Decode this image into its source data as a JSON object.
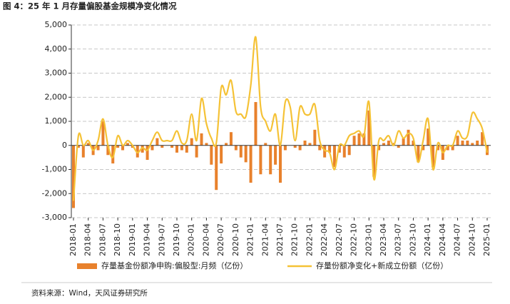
{
  "chart_data": {
    "type": "bar_line",
    "title": "图 4：25 年 1 月存量偏股基金规模净变化情况",
    "source": "资料来源：Wind，天风证券研究所",
    "categories": [
      "2018-01",
      null,
      null,
      "2018-04",
      null,
      null,
      "2018-07",
      null,
      null,
      "2018-10",
      null,
      null,
      "2019-01",
      null,
      null,
      "2019-04",
      null,
      null,
      "2019-07",
      null,
      null,
      "2019-10",
      null,
      null,
      "2020-01",
      null,
      null,
      "2020-04",
      null,
      null,
      "2020-07",
      null,
      null,
      "2020-10",
      null,
      null,
      "2021-01",
      null,
      null,
      "2021-04",
      null,
      null,
      "2021-07",
      null,
      null,
      "2021-10",
      null,
      null,
      "2022-01",
      null,
      null,
      "2022-04",
      null,
      null,
      "2022-07",
      null,
      null,
      "2022-10",
      null,
      null,
      "2023-01",
      null,
      null,
      "2023-04",
      null,
      null,
      "2023-07",
      null,
      null,
      "2023-10",
      null,
      null,
      "2024-01",
      null,
      null,
      "2024-04",
      null,
      null,
      "2024-07",
      null,
      null,
      "2024-10",
      null,
      null,
      "2025-01"
    ],
    "series": [
      {
        "name": "存量基金份额净申购:偏股型:月频（亿份）",
        "kind": "bar",
        "color": "#e8812c",
        "values": [
          -2600,
          -100,
          -500,
          100,
          -400,
          -200,
          1000,
          -400,
          -750,
          -100,
          -200,
          100,
          -100,
          -500,
          -300,
          -600,
          -200,
          300,
          -100,
          0,
          -100,
          -300,
          -200,
          -300,
          300,
          -500,
          500,
          100,
          -800,
          -1850,
          -750,
          100,
          550,
          -200,
          -500,
          -700,
          -1550,
          1800,
          -1200,
          100,
          -1200,
          -800,
          -1550,
          -200,
          0,
          -100,
          -200,
          200,
          100,
          650,
          -200,
          -500,
          -300,
          -900,
          -300,
          -500,
          -400,
          400,
          500,
          500,
          1450,
          -1300,
          -200,
          100,
          200,
          100,
          -100,
          300,
          650,
          200,
          -700,
          -200,
          700,
          -900,
          -200,
          -600,
          -200,
          -200,
          400,
          200,
          200,
          100,
          200,
          550,
          -400
        ]
      },
      {
        "name": "存量份额净变化+新成立份额（亿份）",
        "kind": "line",
        "color": "#f5c236",
        "values": [
          -2300,
          400,
          0,
          200,
          -200,
          200,
          1100,
          0,
          -500,
          400,
          0,
          200,
          0,
          -300,
          -100,
          -200,
          200,
          550,
          200,
          200,
          200,
          600,
          100,
          200,
          1300,
          200,
          1950,
          900,
          300,
          100,
          2400,
          2100,
          2700,
          1400,
          1300,
          1200,
          2500,
          4500,
          1600,
          1000,
          600,
          1300,
          0,
          1800,
          1600,
          200,
          1600,
          1300,
          1300,
          1700,
          200,
          -200,
          -300,
          -1000,
          0,
          0,
          400,
          500,
          600,
          400,
          1800,
          -1400,
          200,
          200,
          400,
          0,
          600,
          300,
          500,
          300,
          -700,
          200,
          1100,
          -1000,
          100,
          -300,
          0,
          0,
          600,
          300,
          400,
          1350,
          1100,
          700,
          -300
        ]
      }
    ],
    "ylim": [
      -3000,
      5000
    ],
    "yticks": [
      {
        "value": -3000,
        "label": "-3,000"
      },
      {
        "value": -2000,
        "label": "-2,000"
      },
      {
        "value": -1000,
        "label": "-1,000"
      },
      0,
      {
        "value": 1000,
        "label": "1,000"
      },
      {
        "value": 2000,
        "label": "2,000"
      },
      {
        "value": 3000,
        "label": "3,000"
      },
      {
        "value": 4000,
        "label": "4,000"
      },
      {
        "value": 5000,
        "label": "5,000"
      }
    ],
    "grid": true
  }
}
